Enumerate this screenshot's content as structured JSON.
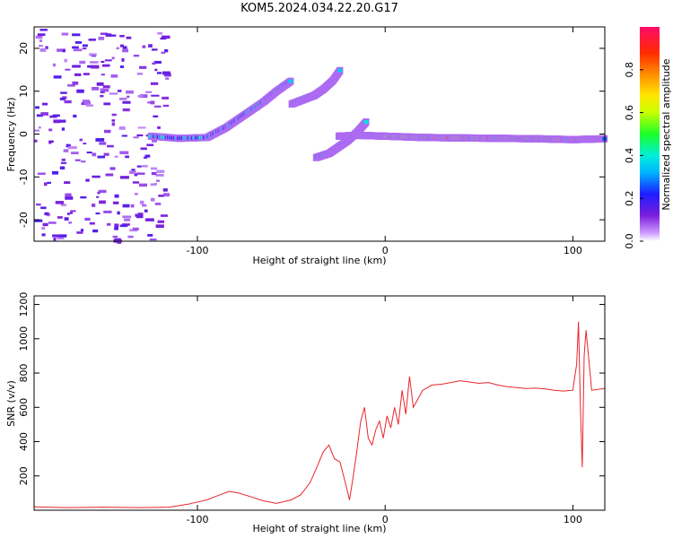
{
  "title": "KOM5.2024.034.22.20.G17",
  "chart_data": [
    {
      "type": "heatmap",
      "xlabel": "Height of straight line (km)",
      "ylabel": "Frequency (Hz)",
      "xlim": [
        -187,
        117
      ],
      "ylim": [
        -25,
        25
      ],
      "xticks": [
        -100,
        0,
        100
      ],
      "yticks": [
        -20,
        -10,
        0,
        10,
        20
      ],
      "colorbar": {
        "label": "Normalized spectral amplitude",
        "ticks": [
          "0.0",
          "0.2",
          "0.4",
          "0.6",
          "0.8"
        ],
        "range": [
          0,
          1
        ],
        "colormap": "rainbow-violet-to-red"
      },
      "trace_segments": [
        {
          "name": "main-trace",
          "x": [
            -25,
            -15,
            0,
            20,
            40,
            60,
            80,
            100,
            117
          ],
          "y": [
            -0.5,
            -0.3,
            -0.5,
            -0.8,
            -0.9,
            -1.0,
            -1.1,
            -1.3,
            -1.1
          ]
        },
        {
          "name": "descending-arm",
          "x": [
            -125,
            -110,
            -95,
            -85,
            -75,
            -65,
            -58,
            -50
          ],
          "y": [
            -0.5,
            -1.0,
            -0.8,
            1.5,
            4.5,
            7.5,
            10.0,
            12.5
          ]
        },
        {
          "name": "upper-arm",
          "x": [
            -50,
            -44,
            -38,
            -33,
            -28,
            -24
          ],
          "y": [
            7.0,
            8.0,
            9.0,
            10.5,
            12.5,
            15.0
          ]
        },
        {
          "name": "side-arm",
          "x": [
            -37,
            -30,
            -25,
            -20,
            -15,
            -10
          ],
          "y": [
            -5.5,
            -4.5,
            -3.0,
            -1.5,
            0.5,
            3.0
          ]
        }
      ]
    },
    {
      "type": "line",
      "xlabel": "Height of straight line (km)",
      "ylabel": "SNR (v/v)",
      "xlim": [
        -187,
        117
      ],
      "ylim": [
        0,
        1250
      ],
      "xticks": [
        -100,
        0,
        100
      ],
      "yticks": [
        200,
        400,
        600,
        800,
        1000,
        1200
      ],
      "line_color": "#e8262a",
      "series": [
        {
          "x": [
            -187,
            -170,
            -150,
            -130,
            -115,
            -105,
            -95,
            -88,
            -83,
            -78,
            -72,
            -65,
            -58,
            -50,
            -45,
            -40,
            -36,
            -33,
            -30,
            -27,
            -24,
            -21,
            -19,
            -17,
            -15,
            -13,
            -11,
            -9,
            -7,
            -5,
            -3,
            -1,
            1,
            3,
            5,
            7,
            9,
            11,
            13,
            15,
            17,
            20,
            25,
            30,
            35,
            40,
            45,
            50,
            55,
            60,
            65,
            70,
            75,
            80,
            85,
            90,
            95,
            100,
            102,
            103,
            104,
            105,
            106,
            107,
            110,
            117
          ],
          "y": [
            20,
            15,
            18,
            15,
            18,
            35,
            60,
            90,
            110,
            100,
            80,
            55,
            40,
            60,
            90,
            160,
            260,
            340,
            380,
            300,
            280,
            150,
            60,
            200,
            350,
            520,
            600,
            420,
            380,
            470,
            520,
            420,
            550,
            480,
            600,
            500,
            700,
            560,
            780,
            600,
            640,
            700,
            730,
            735,
            745,
            755,
            748,
            740,
            745,
            730,
            720,
            715,
            710,
            712,
            708,
            700,
            695,
            700,
            850,
            1100,
            600,
            250,
            900,
            1050,
            700,
            710
          ]
        }
      ]
    }
  ]
}
